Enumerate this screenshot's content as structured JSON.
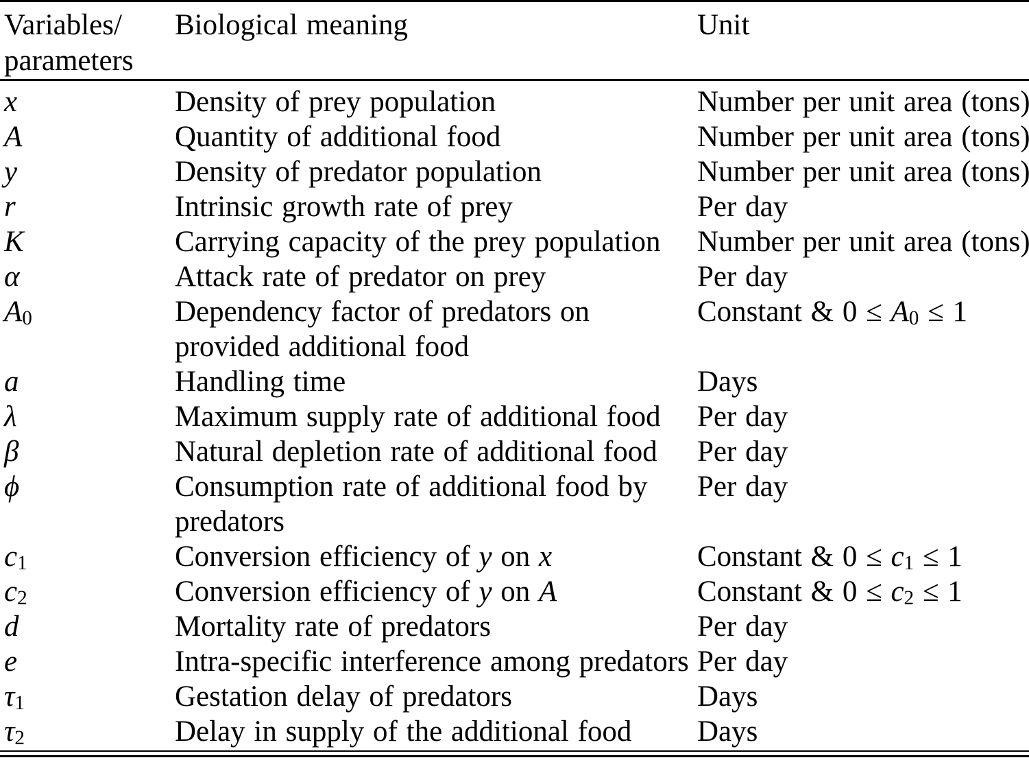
{
  "table": {
    "headers": [
      "Variables/\nparameters",
      "Biological meaning",
      "Unit"
    ],
    "rows": [
      {
        "symbol": "*x*",
        "meaning": "Density of prey population",
        "unit": "Number per unit area (tons)"
      },
      {
        "symbol": "*A*",
        "meaning": "Quantity of additional food",
        "unit": "Number per unit area (tons)"
      },
      {
        "symbol": "*y*",
        "meaning": "Density of predator population",
        "unit": "Number per unit area (tons)"
      },
      {
        "symbol": "*r*",
        "meaning": "Intrinsic growth rate of prey",
        "unit": "Per day"
      },
      {
        "symbol": "*K*",
        "meaning": "Carrying capacity of the prey population",
        "unit": "Number per unit area (tons)"
      },
      {
        "symbol": "*α*",
        "meaning": "Attack rate of predator on prey",
        "unit": "Per day"
      },
      {
        "symbol": "*A*_0_",
        "meaning": "Dependency factor of predators on\nprovided additional food",
        "unit": "Constant & 0 ≤ *A*_0_ ≤ 1"
      },
      {
        "symbol": "*a*",
        "meaning": "Handling time",
        "unit": "Days"
      },
      {
        "symbol": "*λ*",
        "meaning": "Maximum supply rate of additional food",
        "unit": "Per day"
      },
      {
        "symbol": "*β*",
        "meaning": "Natural depletion rate of additional food",
        "unit": "Per day"
      },
      {
        "symbol": "*ϕ*",
        "meaning": "Consumption rate of additional food by\npredators",
        "unit": "Per day"
      },
      {
        "symbol": "*c*_1_",
        "meaning": "Conversion efficiency of *y* on *x*",
        "unit": "Constant & 0 ≤ *c*_1_ ≤ 1"
      },
      {
        "symbol": "*c*_2_",
        "meaning": "Conversion efficiency of *y* on *A*",
        "unit": "Constant & 0 ≤ *c*_2_ ≤ 1"
      },
      {
        "symbol": "*d*",
        "meaning": "Mortality rate of predators",
        "unit": "Per day"
      },
      {
        "symbol": "*e*",
        "meaning": "Intra-specific interference among predators",
        "unit": "Per day"
      },
      {
        "symbol": "*τ*_1_",
        "meaning": "Gestation delay of predators",
        "unit": "Days"
      },
      {
        "symbol": "*τ*_2_",
        "meaning": "Delay in supply of the additional food",
        "unit": "Days"
      }
    ]
  }
}
